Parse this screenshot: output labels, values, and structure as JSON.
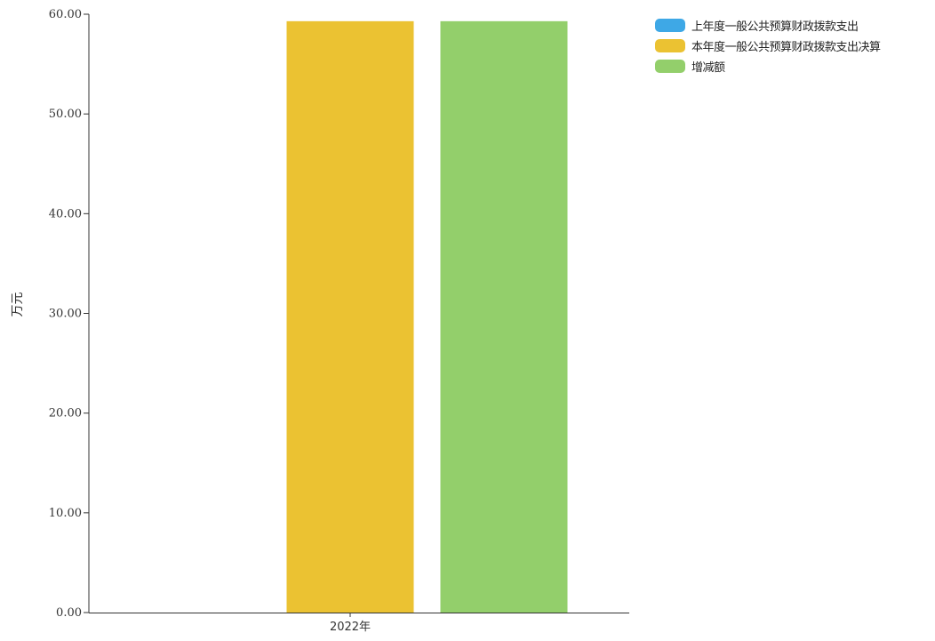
{
  "chart_data": {
    "type": "bar",
    "categories": [
      "2022年"
    ],
    "series": [
      {
        "name": "上年度一般公共预算财政拨款支出",
        "values": [
          0
        ],
        "color": "#3ea8e6"
      },
      {
        "name": "本年度一般公共预算财政拨款支出决算",
        "values": [
          59.3
        ],
        "color": "#ebc232"
      },
      {
        "name": "增减额",
        "values": [
          59.3
        ],
        "color": "#93cf6b"
      }
    ],
    "ylabel": "万元",
    "ylim": [
      0,
      60
    ],
    "yticks": [
      "0.00",
      "10.00",
      "20.00",
      "30.00",
      "40.00",
      "50.00",
      "60.00"
    ],
    "grid": false,
    "legend_position": "top-right"
  }
}
